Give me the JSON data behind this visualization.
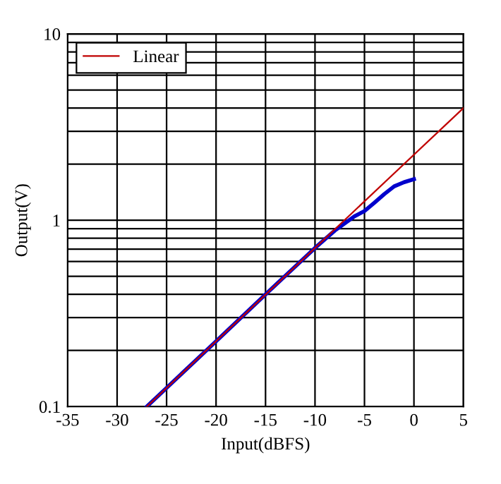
{
  "chart_data": {
    "type": "line",
    "xlabel": "Input(dBFS)",
    "ylabel": "Output(V)",
    "log": "y",
    "xlim": [
      -35,
      5
    ],
    "ylim": [
      0.1,
      10
    ],
    "xticks": [
      -35,
      -30,
      -25,
      -20,
      -15,
      -10,
      -5,
      0,
      5
    ],
    "yticks": [
      0.1,
      1,
      10
    ],
    "grid": true,
    "legend": "top left",
    "marker": "none",
    "line_style": "solid",
    "series": [
      {
        "name": "Linear",
        "color": "#c00000",
        "x": [
          -27,
          5
        ],
        "values": [
          0.1,
          4.0
        ]
      },
      {
        "color": "#0000cc",
        "x": [
          -27,
          -20,
          -15,
          -10,
          -8,
          -6,
          -5,
          -4,
          -3,
          -2,
          -1,
          0
        ],
        "values": [
          0.1,
          0.224,
          0.4,
          0.71,
          0.88,
          1.05,
          1.12,
          1.24,
          1.38,
          1.52,
          1.6,
          1.66
        ]
      }
    ]
  }
}
